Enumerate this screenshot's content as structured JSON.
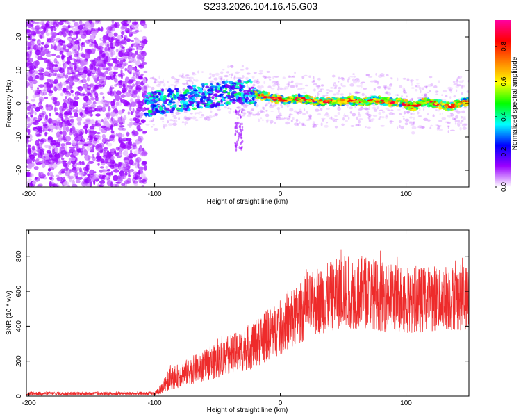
{
  "title": "S233.2026.104.16.45.G03",
  "colors": {
    "snr_line": "#ee2b2b",
    "axes": "#000000"
  },
  "chart_data": [
    {
      "type": "heatmap",
      "title": "S233.2026.104.16.45.G03",
      "xlabel": "Height of straight line (km)",
      "ylabel": "Frequency (Hz)",
      "xlim": [
        -202,
        150
      ],
      "ylim": [
        -25,
        25
      ],
      "x_ticks": [
        -200,
        -100,
        0,
        100
      ],
      "y_ticks": [
        -20,
        -10,
        0,
        10,
        20
      ],
      "x_tick_labels": [
        "-200",
        "-100",
        "0",
        "100"
      ],
      "y_tick_labels": [
        "-20",
        "-10",
        "0",
        "10",
        "20"
      ],
      "colorbar": {
        "label": "Normalized spectral amplitude",
        "range": [
          0,
          0.95
        ],
        "ticks": [
          0.0,
          0.2,
          0.4,
          0.6,
          0.8
        ],
        "tick_labels": [
          "0.0",
          "0.2",
          "0.4",
          "0.6",
          "0.8"
        ],
        "colormap": [
          "#ffffff",
          "#9a00ff",
          "#0000ff",
          "#00ffff",
          "#00ff00",
          "#ffff00",
          "#ff8000",
          "#ff0000",
          "#ff00a0"
        ]
      },
      "ridge": {
        "description": "peak frequency ridge",
        "x": [
          -105,
          -95,
          -85,
          -75,
          -65,
          -55,
          -45,
          -35,
          -25,
          -15,
          -5,
          5,
          15,
          25,
          35,
          45,
          55,
          65,
          75,
          85,
          95,
          105,
          115,
          125,
          135,
          145
        ],
        "y": [
          -0.5,
          0.5,
          1.0,
          1.5,
          2.0,
          2.5,
          3.0,
          3.5,
          3.5,
          2.5,
          1.5,
          1.0,
          1.5,
          1.0,
          0.5,
          0.5,
          1.0,
          0.5,
          1.0,
          0.5,
          0.5,
          -1.0,
          0.5,
          0.0,
          -1.0,
          0.5
        ]
      },
      "noise_region_x": [
        -202,
        -107
      ]
    },
    {
      "type": "line",
      "xlabel": "Height of straight line (km)",
      "ylabel": "SNR (10 * v/v)",
      "xlim": [
        -202,
        150
      ],
      "ylim": [
        0,
        950
      ],
      "x_ticks": [
        -200,
        -100,
        0,
        100
      ],
      "y_ticks": [
        0,
        200,
        400,
        600,
        800
      ],
      "x_tick_labels": [
        "-200",
        "-100",
        "0",
        "100"
      ],
      "y_tick_labels": [
        "0",
        "200",
        "400",
        "600",
        "800"
      ],
      "series": [
        {
          "name": "SNR",
          "x": [
            -202,
            -180,
            -160,
            -140,
            -120,
            -100,
            -95,
            -90,
            -80,
            -70,
            -60,
            -50,
            -40,
            -30,
            -20,
            -10,
            0,
            10,
            20,
            30,
            40,
            50,
            60,
            70,
            80,
            90,
            100,
            110,
            120,
            130,
            140,
            150
          ],
          "y": [
            15,
            15,
            14,
            15,
            15,
            15,
            40,
            90,
            120,
            150,
            175,
            200,
            240,
            260,
            300,
            350,
            390,
            440,
            500,
            540,
            570,
            600,
            590,
            600,
            570,
            560,
            560,
            550,
            560,
            570,
            560,
            570
          ],
          "spread": [
            10,
            10,
            10,
            10,
            10,
            10,
            30,
            60,
            70,
            80,
            90,
            100,
            110,
            120,
            140,
            150,
            160,
            170,
            180,
            190,
            200,
            210,
            210,
            210,
            200,
            200,
            200,
            190,
            190,
            190,
            190,
            190
          ]
        }
      ]
    }
  ]
}
